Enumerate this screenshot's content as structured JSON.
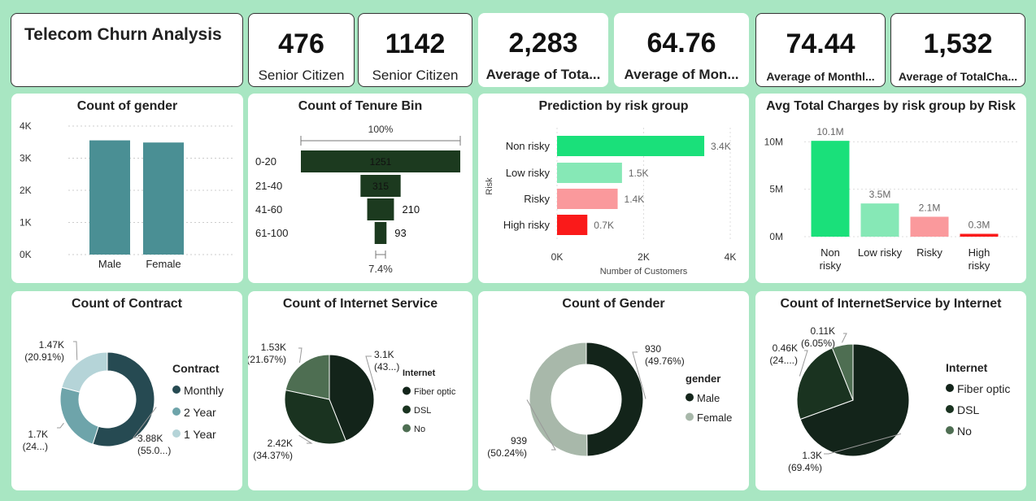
{
  "dashboard": {
    "title": "Telecom Churn Analysis"
  },
  "kpis": [
    {
      "value": "476",
      "label": "Senior Citizen"
    },
    {
      "value": "1142",
      "label": "Senior Citizen"
    },
    {
      "value": "2,283",
      "label": "Average of Tota..."
    },
    {
      "value": "64.76",
      "label": "Average of Mon..."
    },
    {
      "value": "74.44",
      "label": "Average of Monthl..."
    },
    {
      "value": "1,532",
      "label": "Average of TotalCha..."
    }
  ],
  "chart_data": [
    {
      "type": "bar",
      "title": "Count of gender",
      "categories": [
        "Male",
        "Female"
      ],
      "values": [
        3555,
        3488
      ],
      "ylim": [
        0,
        4000
      ],
      "yticks": [
        "0K",
        "1K",
        "2K",
        "3K",
        "4K"
      ],
      "color": "#4a8f94",
      "grid": true
    },
    {
      "type": "funnel",
      "title": "Count of Tenure Bin",
      "categories": [
        "0-20",
        "21-40",
        "41-60",
        "61-100"
      ],
      "values": [
        1251,
        315,
        210,
        93
      ],
      "top_pct": "100%",
      "bottom_pct": "7.4%",
      "color": "#1c3a1f"
    },
    {
      "type": "bar",
      "orientation": "horizontal",
      "title": "Prediction by risk group",
      "categories": [
        "Non risky",
        "Low risky",
        "Risky",
        "High risky"
      ],
      "values": [
        3400,
        1500,
        1400,
        700
      ],
      "labels": [
        "3.4K",
        "1.5K",
        "1.4K",
        "0.7K"
      ],
      "colors": [
        "#1ae07a",
        "#86e8b6",
        "#fa999c",
        "#fa1a1a"
      ],
      "xlabel": "Number of Customers",
      "ylabel": "Risk",
      "xlim": [
        0,
        4000
      ],
      "xticks": [
        "0K",
        "2K",
        "4K"
      ]
    },
    {
      "type": "bar",
      "title": "Avg Total Charges by risk group by Risk",
      "categories": [
        "Non risky",
        "Low risky",
        "Risky",
        "High risky"
      ],
      "values": [
        10.1,
        3.5,
        2.1,
        0.3
      ],
      "labels": [
        "10.1M",
        "3.5M",
        "2.1M",
        "0.3M"
      ],
      "colors": [
        "#1ae07a",
        "#86e8b6",
        "#fa999c",
        "#fa1a1a"
      ],
      "ylim": [
        0,
        12
      ],
      "yticks": [
        "0M",
        "5M",
        "10M"
      ]
    },
    {
      "type": "pie",
      "donut": true,
      "title": "Count of Contract",
      "legend_title": "Contract",
      "categories": [
        "Monthly",
        "2 Year",
        "1 Year"
      ],
      "values": [
        3875,
        1695,
        1473
      ],
      "labels": [
        [
          "3.88K",
          "(55.0...)"
        ],
        [
          "1.7K",
          "(24...)"
        ],
        [
          "1.47K",
          "(20.91%)"
        ]
      ],
      "colors": [
        "#264a52",
        "#6ea4aa",
        "#b5d4d8"
      ]
    },
    {
      "type": "pie",
      "title": "Count of Internet Service",
      "legend_title": "Internet",
      "categories": [
        "Fiber optic",
        "DSL",
        "No"
      ],
      "values": [
        3096,
        2421,
        1526
      ],
      "labels": [
        [
          "3.1K",
          "(43...)"
        ],
        [
          "2.42K",
          "(34.37%)"
        ],
        [
          "1.53K",
          "(21.67%)"
        ]
      ],
      "colors": [
        "#13241a",
        "#1a3320",
        "#4e6e52"
      ]
    },
    {
      "type": "pie",
      "donut": true,
      "title": "Count of Gender",
      "legend_title": "gender",
      "categories": [
        "Male",
        "Female"
      ],
      "values": [
        930,
        939
      ],
      "labels": [
        [
          "930",
          "(49.76%)"
        ],
        [
          "939",
          "(50.24%)"
        ]
      ],
      "colors": [
        "#13241a",
        "#a8b8aa"
      ]
    },
    {
      "type": "pie",
      "title": "Count of InternetService by Internet",
      "legend_title": "Internet",
      "categories": [
        "Fiber optic",
        "DSL",
        "No"
      ],
      "values": [
        1297,
        457,
        113
      ],
      "labels": [
        [
          "1.3K",
          "(69.4%)"
        ],
        [
          "0.46K",
          "(24....)"
        ],
        [
          "0.11K",
          "(6.05%)"
        ]
      ],
      "colors": [
        "#13241a",
        "#1a3320",
        "#4e6e52"
      ]
    }
  ]
}
